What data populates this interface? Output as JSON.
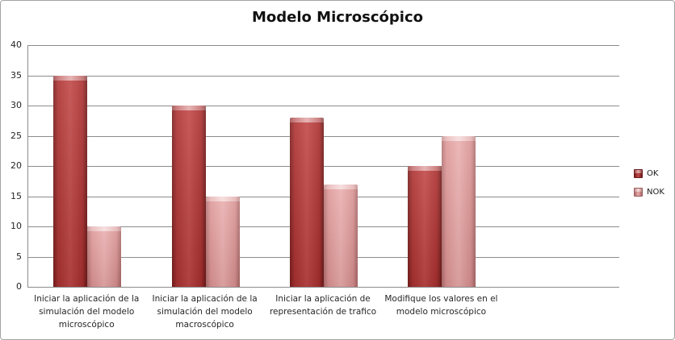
{
  "title": "Modelo Microscópico",
  "chart_data": {
    "type": "bar",
    "title": "Modelo Microscópico",
    "categories": [
      "Iniciar la aplicación de la simulación del modelo microscópico",
      "Iniciar la aplicación de la simulación del modelo macroscópico",
      "Iniciar la aplicación de representación de trafico",
      "Modifique los valores en el modelo microscópico"
    ],
    "categories_lines": [
      [
        "Iniciar la aplicación de la",
        "simulación del modelo",
        "microscópico"
      ],
      [
        "Iniciar la aplicación de la",
        "simulación del modelo",
        "macroscópico"
      ],
      [
        "Iniciar la aplicación de",
        "representación de trafico"
      ],
      [
        "Modifique los valores en el",
        "modelo microscópico"
      ]
    ],
    "series": [
      {
        "name": "OK",
        "color": "#b23434",
        "values": [
          35,
          30,
          28,
          20
        ]
      },
      {
        "name": "NOK",
        "color": "#dd9595",
        "values": [
          10,
          15,
          17,
          25
        ]
      }
    ],
    "ylim": [
      0,
      40
    ],
    "yticks": [
      40,
      35,
      30,
      25,
      20,
      15,
      10,
      5,
      0
    ],
    "grid": true,
    "legend_position": "right",
    "empty_trailing_slots": 1
  },
  "colors": {
    "axis": "#8c8c8c",
    "border": "#a3a3a3",
    "ok_bar": "#b23434",
    "nok_bar": "#dd9595"
  }
}
